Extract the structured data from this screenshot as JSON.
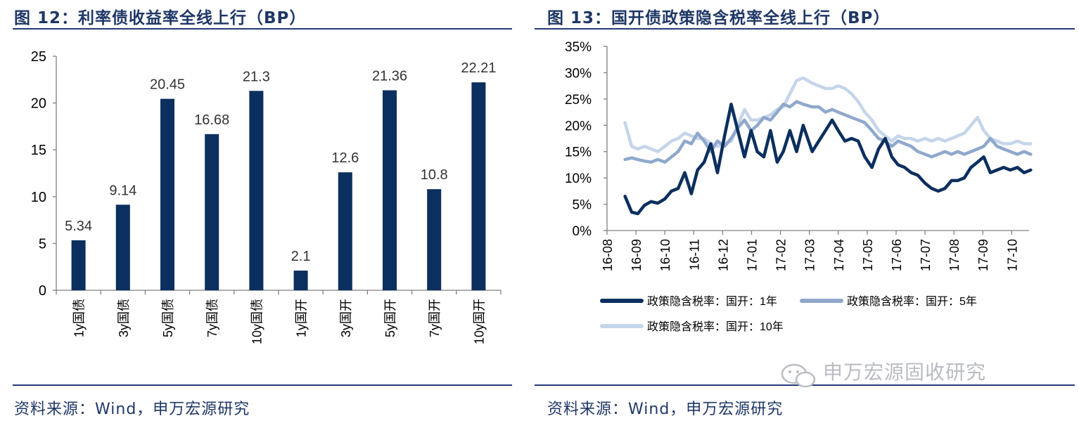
{
  "left": {
    "title": "图 12：利率债收益率全线上行（BP）",
    "source": "资料来源：Wind，申万宏源研究"
  },
  "right": {
    "title": "图 13：国开债政策隐含税率全线上行（BP）",
    "source": "资料来源：Wind，申万宏源研究"
  },
  "watermark": "申万宏源固收研究",
  "colors": {
    "bar": "#0b2f5e",
    "line_1y": "#0b2f5e",
    "line_5y": "#8fa8cc",
    "line_10y": "#c5d5ea",
    "rule": "#233a74"
  },
  "chart_data": [
    {
      "type": "bar",
      "categories": [
        "1y国债",
        "3y国债",
        "5y国债",
        "7y国债",
        "10y国债",
        "1y国开",
        "3y国开",
        "5y国开",
        "7y国开",
        "10y国开"
      ],
      "values": [
        5.34,
        9.14,
        20.45,
        16.68,
        21.3,
        2.1,
        12.6,
        21.36,
        10.8,
        22.21
      ],
      "data_labels": [
        "5.34",
        "9.14",
        "20.45",
        "16.68",
        "21.3",
        "2.1",
        "12.6",
        "21.36",
        "10.8",
        "22.21"
      ],
      "yticks": [
        "0",
        "5",
        "10",
        "15",
        "20",
        "25"
      ],
      "ylim": [
        0,
        25
      ],
      "grid": false
    },
    {
      "type": "line",
      "x_ticks": [
        "16-08",
        "16-09",
        "16-10",
        "16-11",
        "16-12",
        "17-01",
        "17-02",
        "17-03",
        "17-04",
        "17-05",
        "17-06",
        "17-07",
        "17-08",
        "17-09",
        "17-10"
      ],
      "yticks": [
        "0%",
        "5%",
        "10%",
        "15%",
        "20%",
        "25%",
        "30%",
        "35%"
      ],
      "ylim": [
        0,
        35
      ],
      "grid": false,
      "legend_position": "bottom",
      "series": [
        {
          "name": "政策隐含税率：国开：1年",
          "x": [
            "16-08-20",
            "16-08-27",
            "16-09-03",
            "16-09-10",
            "16-09-17",
            "16-09-24",
            "16-10-01",
            "16-10-08",
            "16-10-15",
            "16-10-22",
            "16-10-29",
            "16-11-05",
            "16-11-12",
            "16-11-19",
            "16-11-26",
            "16-12-03",
            "16-12-10",
            "16-12-17",
            "16-12-24",
            "16-12-31",
            "17-01-07",
            "17-01-14",
            "17-01-21",
            "17-01-28",
            "17-02-04",
            "17-02-11",
            "17-02-18",
            "17-02-25",
            "17-03-04",
            "17-03-11",
            "17-03-18",
            "17-03-25",
            "17-04-01",
            "17-04-08",
            "17-04-15",
            "17-04-22",
            "17-04-29",
            "17-05-06",
            "17-05-13",
            "17-05-20",
            "17-05-27",
            "17-06-03",
            "17-06-10",
            "17-06-17",
            "17-06-24",
            "17-07-01",
            "17-07-08",
            "17-07-15",
            "17-07-22",
            "17-07-29",
            "17-08-05",
            "17-08-12",
            "17-08-19",
            "17-08-26",
            "17-09-02",
            "17-09-09",
            "17-09-16",
            "17-09-23",
            "17-09-30",
            "17-10-07",
            "17-10-14",
            "17-10-21"
          ],
          "values": [
            6.5,
            3.5,
            3.2,
            4.8,
            5.5,
            5.2,
            6.0,
            7.5,
            8.0,
            11.0,
            7.0,
            11.5,
            13.0,
            16.5,
            11.0,
            18.0,
            24.0,
            19.0,
            14.0,
            19.0,
            15.0,
            14.0,
            19.0,
            13.0,
            15.0,
            19.0,
            15.0,
            20.0,
            15.0,
            17.0,
            19.0,
            21.0,
            19.0,
            17.0,
            17.5,
            17.0,
            14.0,
            12.0,
            15.5,
            17.5,
            14.0,
            12.5,
            12.0,
            11.0,
            10.5,
            9.0,
            8.0,
            7.5,
            8.0,
            9.5,
            9.5,
            10.0,
            12.0,
            13.0,
            14.0,
            11.0,
            11.5,
            12.0,
            11.5,
            12.0,
            11.0,
            11.5
          ]
        },
        {
          "name": "政策隐含税率：国开：5年",
          "x": [
            "16-08-20",
            "16-08-27",
            "16-09-03",
            "16-09-10",
            "16-09-17",
            "16-09-24",
            "16-10-01",
            "16-10-08",
            "16-10-15",
            "16-10-22",
            "16-10-29",
            "16-11-05",
            "16-11-12",
            "16-11-19",
            "16-11-26",
            "16-12-03",
            "16-12-10",
            "16-12-17",
            "16-12-24",
            "16-12-31",
            "17-01-07",
            "17-01-14",
            "17-01-21",
            "17-01-28",
            "17-02-04",
            "17-02-11",
            "17-02-18",
            "17-02-25",
            "17-03-04",
            "17-03-11",
            "17-03-18",
            "17-03-25",
            "17-04-01",
            "17-04-08",
            "17-04-15",
            "17-04-22",
            "17-04-29",
            "17-05-06",
            "17-05-13",
            "17-05-20",
            "17-05-27",
            "17-06-03",
            "17-06-10",
            "17-06-17",
            "17-06-24",
            "17-07-01",
            "17-07-08",
            "17-07-15",
            "17-07-22",
            "17-07-29",
            "17-08-05",
            "17-08-12",
            "17-08-19",
            "17-08-26",
            "17-09-02",
            "17-09-09",
            "17-09-16",
            "17-09-23",
            "17-09-30",
            "17-10-07",
            "17-10-14",
            "17-10-21"
          ],
          "values": [
            13.5,
            13.8,
            13.5,
            13.2,
            13.0,
            13.5,
            13.0,
            14.0,
            15.0,
            17.0,
            16.5,
            18.5,
            17.0,
            15.0,
            17.0,
            16.0,
            17.5,
            19.5,
            21.0,
            19.0,
            20.0,
            21.5,
            21.0,
            22.5,
            24.0,
            23.5,
            24.5,
            24.0,
            23.5,
            23.5,
            22.5,
            23.0,
            22.5,
            22.0,
            21.5,
            21.0,
            20.5,
            19.0,
            17.5,
            17.0,
            16.0,
            17.0,
            16.5,
            16.0,
            15.0,
            14.5,
            14.0,
            14.5,
            15.0,
            14.5,
            15.0,
            14.5,
            15.0,
            15.5,
            16.0,
            17.5,
            16.0,
            15.5,
            15.0,
            14.5,
            15.0,
            14.5
          ]
        },
        {
          "name": "政策隐含税率：国开：10年",
          "x": [
            "16-08-20",
            "16-08-27",
            "16-09-03",
            "16-09-10",
            "16-09-17",
            "16-09-24",
            "16-10-01",
            "16-10-08",
            "16-10-15",
            "16-10-22",
            "16-10-29",
            "16-11-05",
            "16-11-12",
            "16-11-19",
            "16-11-26",
            "16-12-03",
            "16-12-10",
            "16-12-17",
            "16-12-24",
            "16-12-31",
            "17-01-07",
            "17-01-14",
            "17-01-21",
            "17-01-28",
            "17-02-04",
            "17-02-11",
            "17-02-18",
            "17-02-25",
            "17-03-04",
            "17-03-11",
            "17-03-18",
            "17-03-25",
            "17-04-01",
            "17-04-08",
            "17-04-15",
            "17-04-22",
            "17-04-29",
            "17-05-06",
            "17-05-13",
            "17-05-20",
            "17-05-27",
            "17-06-03",
            "17-06-10",
            "17-06-17",
            "17-06-24",
            "17-07-01",
            "17-07-08",
            "17-07-15",
            "17-07-22",
            "17-07-29",
            "17-08-05",
            "17-08-12",
            "17-08-19",
            "17-08-26",
            "17-09-02",
            "17-09-09",
            "17-09-16",
            "17-09-23",
            "17-09-30",
            "17-10-07",
            "17-10-14",
            "17-10-21"
          ],
          "values": [
            20.5,
            16.0,
            15.5,
            16.0,
            15.5,
            15.0,
            16.0,
            17.0,
            17.5,
            18.5,
            18.0,
            17.5,
            17.5,
            16.5,
            16.0,
            16.5,
            17.0,
            20.0,
            23.0,
            21.0,
            21.0,
            21.5,
            22.0,
            23.0,
            23.5,
            26.0,
            28.5,
            29.0,
            28.0,
            27.5,
            27.0,
            27.0,
            27.5,
            27.0,
            26.0,
            24.5,
            22.5,
            21.0,
            19.0,
            18.0,
            17.0,
            18.0,
            17.5,
            17.5,
            17.0,
            17.5,
            17.0,
            17.5,
            17.0,
            17.5,
            18.0,
            18.5,
            20.0,
            21.5,
            19.0,
            17.5,
            17.0,
            16.5,
            16.5,
            17.0,
            16.5,
            16.5
          ]
        }
      ]
    }
  ]
}
